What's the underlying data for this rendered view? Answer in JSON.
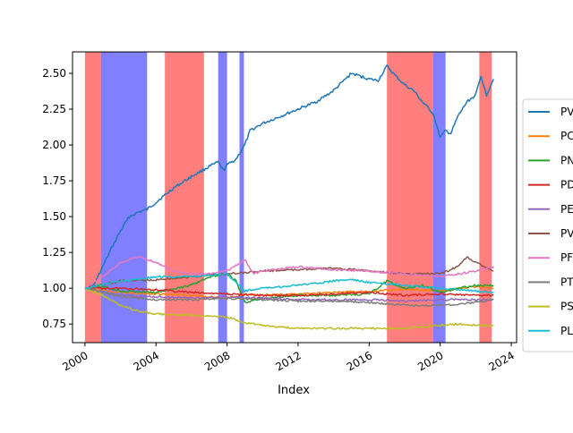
{
  "chart_data": {
    "type": "line",
    "xlabel": "Index",
    "ylabel": "",
    "title": "",
    "xlim": [
      1999.3,
      2024.3
    ],
    "ylim": [
      0.62,
      2.65
    ],
    "x_ticks": [
      {
        "value": 2000,
        "label": "2000"
      },
      {
        "value": 2004,
        "label": "2004"
      },
      {
        "value": 2008,
        "label": "2008"
      },
      {
        "value": 2012,
        "label": "2012"
      },
      {
        "value": 2016,
        "label": "2016"
      },
      {
        "value": 2020,
        "label": "2020"
      },
      {
        "value": 2024,
        "label": "2024"
      }
    ],
    "y_ticks": [
      {
        "value": 0.75,
        "label": "0.75"
      },
      {
        "value": 1.0,
        "label": "1.00"
      },
      {
        "value": 1.25,
        "label": "1.25"
      },
      {
        "value": 1.5,
        "label": "1.50"
      },
      {
        "value": 1.75,
        "label": "1.75"
      },
      {
        "value": 2.0,
        "label": "2.00"
      },
      {
        "value": 2.25,
        "label": "2.25"
      },
      {
        "value": 2.5,
        "label": "2.50"
      }
    ],
    "shaded_regions": [
      {
        "start": 2000.0,
        "end": 2000.9,
        "color": "#ff0000"
      },
      {
        "start": 2000.9,
        "end": 2003.5,
        "color": "#0000ff"
      },
      {
        "start": 2004.5,
        "end": 2006.7,
        "color": "#ff0000"
      },
      {
        "start": 2007.5,
        "end": 2008.0,
        "color": "#0000ff"
      },
      {
        "start": 2008.7,
        "end": 2008.95,
        "color": "#0000ff"
      },
      {
        "start": 2017.0,
        "end": 2019.6,
        "color": "#ff0000"
      },
      {
        "start": 2019.6,
        "end": 2020.3,
        "color": "#0000ff"
      },
      {
        "start": 2022.2,
        "end": 2022.9,
        "color": "#ff0000"
      }
    ],
    "legend_placement": "right, outside plot",
    "series": [
      {
        "name": "PV",
        "color": "#1f77b4",
        "x": [
          2000,
          2000.5,
          2001,
          2001.5,
          2002,
          2002.5,
          2003,
          2003.5,
          2004,
          2005,
          2006,
          2007,
          2007.5,
          2007.8,
          2008,
          2008.5,
          2009,
          2009.3,
          2010,
          2011,
          2012,
          2013,
          2014,
          2014.5,
          2015,
          2016,
          2016.5,
          2017,
          2017.5,
          2018,
          2018.5,
          2019,
          2019.6,
          2020,
          2020.3,
          2020.6,
          2021,
          2021.5,
          2022,
          2022.3,
          2022.6,
          2023
        ],
        "y": [
          1.0,
          1.02,
          1.15,
          1.28,
          1.4,
          1.5,
          1.53,
          1.55,
          1.6,
          1.7,
          1.78,
          1.85,
          1.88,
          1.82,
          1.86,
          1.9,
          2.0,
          2.1,
          2.15,
          2.2,
          2.25,
          2.3,
          2.38,
          2.44,
          2.5,
          2.46,
          2.45,
          2.55,
          2.48,
          2.42,
          2.38,
          2.3,
          2.22,
          2.05,
          2.1,
          2.08,
          2.2,
          2.3,
          2.35,
          2.48,
          2.35,
          2.46
        ]
      },
      {
        "name": "PC",
        "color": "#ff7f0e",
        "x": [
          2000,
          2002,
          2004,
          2006,
          2008,
          2009,
          2010,
          2012,
          2014,
          2016,
          2018,
          2020,
          2022,
          2023
        ],
        "y": [
          1.0,
          0.97,
          0.96,
          0.95,
          0.93,
          0.96,
          0.95,
          0.96,
          0.97,
          0.98,
          0.99,
          0.98,
          1.01,
          1.0
        ]
      },
      {
        "name": "PN",
        "color": "#2ca02c",
        "x": [
          2000,
          2001,
          2002,
          2004,
          2006,
          2007,
          2008,
          2008.5,
          2009,
          2010,
          2012,
          2014,
          2016,
          2017,
          2018,
          2019,
          2020,
          2021,
          2022,
          2023
        ],
        "y": [
          1.0,
          1.01,
          0.98,
          0.97,
          1.02,
          1.08,
          1.1,
          1.05,
          0.9,
          0.93,
          0.95,
          0.95,
          0.96,
          1.05,
          1.0,
          1.02,
          0.97,
          1.0,
          1.02,
          1.02
        ]
      },
      {
        "name": "PD",
        "color": "#d62728",
        "x": [
          2000,
          2002,
          2004,
          2006,
          2008,
          2010,
          2012,
          2014,
          2016,
          2018,
          2020,
          2022,
          2023
        ],
        "y": [
          1.0,
          1.0,
          0.99,
          0.97,
          0.96,
          0.95,
          0.95,
          0.96,
          0.97,
          0.95,
          0.96,
          0.95,
          0.95
        ]
      },
      {
        "name": "PE",
        "color": "#9467bd",
        "x": [
          2000,
          2002,
          2004,
          2006,
          2008,
          2010,
          2012,
          2014,
          2016,
          2018,
          2020,
          2022,
          2023
        ],
        "y": [
          1.0,
          0.95,
          0.94,
          0.93,
          0.94,
          0.93,
          0.92,
          0.92,
          0.92,
          0.91,
          0.92,
          0.92,
          0.92
        ]
      },
      {
        "name": "PV",
        "color": "#8c564b",
        "x": [
          2000,
          2002,
          2004,
          2006,
          2008,
          2010,
          2012,
          2014,
          2016,
          2018,
          2020,
          2021,
          2021.5,
          2022,
          2023
        ],
        "y": [
          1.0,
          1.05,
          1.06,
          1.08,
          1.1,
          1.12,
          1.13,
          1.14,
          1.12,
          1.1,
          1.1,
          1.15,
          1.22,
          1.18,
          1.12
        ]
      },
      {
        "name": "PF",
        "color": "#e377c2",
        "x": [
          2000,
          2001,
          2002,
          2003,
          2004,
          2005,
          2006,
          2007,
          2008,
          2009,
          2009.5,
          2010,
          2012,
          2014,
          2016,
          2018,
          2020,
          2022,
          2023
        ],
        "y": [
          1.0,
          1.08,
          1.18,
          1.22,
          1.18,
          1.12,
          1.1,
          1.1,
          1.12,
          1.2,
          1.1,
          1.12,
          1.15,
          1.13,
          1.12,
          1.1,
          1.08,
          1.12,
          1.15
        ]
      },
      {
        "name": "PT",
        "color": "#7f7f7f",
        "x": [
          2000,
          2002,
          2004,
          2006,
          2008,
          2010,
          2012,
          2014,
          2016,
          2018,
          2020,
          2022,
          2023
        ],
        "y": [
          1.0,
          0.94,
          0.92,
          0.92,
          0.93,
          0.92,
          0.91,
          0.91,
          0.9,
          0.88,
          0.88,
          0.9,
          0.92
        ]
      },
      {
        "name": "PS",
        "color": "#bcbd22",
        "x": [
          2000,
          2001,
          2002,
          2003,
          2004,
          2006,
          2008,
          2009,
          2010,
          2012,
          2014,
          2016,
          2018,
          2019,
          2020,
          2021,
          2022,
          2023
        ],
        "y": [
          1.0,
          0.95,
          0.88,
          0.84,
          0.82,
          0.81,
          0.8,
          0.76,
          0.74,
          0.72,
          0.72,
          0.72,
          0.72,
          0.73,
          0.74,
          0.75,
          0.74,
          0.74
        ]
      },
      {
        "name": "PL",
        "color": "#17becf",
        "x": [
          2000,
          2002,
          2004,
          2006,
          2008,
          2009,
          2010,
          2012,
          2014,
          2015,
          2016,
          2018,
          2020,
          2022,
          2023
        ],
        "y": [
          1.0,
          1.05,
          1.08,
          1.08,
          1.1,
          0.98,
          1.0,
          1.02,
          1.05,
          1.06,
          1.04,
          1.02,
          1.0,
          0.98,
          0.97
        ]
      }
    ]
  }
}
